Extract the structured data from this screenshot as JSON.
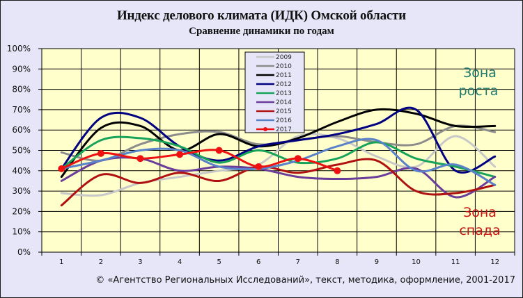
{
  "header": {
    "title": "Индекс делового климата (ИДК) Омской области",
    "subtitle": "Сравнение динамики  по годам"
  },
  "footer": {
    "copyright": "© «Агентство Региональных  Исследований»,  текст, методика, оформление,  2001-2017"
  },
  "annotations": {
    "zone_up_line1": "Зона",
    "zone_up_line2": "роста",
    "zone_down_line1": "Зона",
    "zone_down_line2": "спада",
    "zone_up_color": "#1f7a6e",
    "zone_down_color": "#cc1111"
  },
  "colors": {
    "frame_bg": "#e6e6f8",
    "plot_bg": "#ffffcc",
    "grid": "#000000",
    "legend_bg": "#e6e6f8"
  },
  "chart_data": {
    "type": "line",
    "title": "Индекс делового климата (ИДК) Омской области",
    "subtitle": "Сравнение динамики  по годам",
    "xlabel": "",
    "ylabel": "",
    "categories": [
      "1",
      "2",
      "3",
      "4",
      "5",
      "6",
      "7",
      "8",
      "9",
      "10",
      "11",
      "12"
    ],
    "yticks": [
      "0%",
      "10%",
      "20%",
      "30%",
      "40%",
      "50%",
      "60%",
      "70%",
      "80%",
      "90%",
      "100%"
    ],
    "ylim": [
      0,
      100
    ],
    "grid": true,
    "smooth": true,
    "legend_position": "inside-top-center",
    "series": [
      {
        "name": "2009",
        "color": "#c8c8c8",
        "values": [
          29,
          28,
          34,
          37,
          40,
          43,
          57,
          56,
          47,
          42,
          57,
          42
        ]
      },
      {
        "name": "2010",
        "color": "#8c8c8c",
        "values": [
          49,
          45,
          53,
          58,
          59,
          53,
          55,
          57,
          54,
          53,
          62,
          59
        ]
      },
      {
        "name": "2011",
        "color": "#000000",
        "values": [
          37,
          61,
          62,
          50,
          58,
          52,
          56,
          64,
          70,
          68,
          62,
          62
        ]
      },
      {
        "name": "2012",
        "color": "#000080",
        "values": [
          41,
          66,
          66,
          52,
          45,
          52,
          55,
          58,
          63,
          70,
          40,
          47
        ]
      },
      {
        "name": "2013",
        "color": "#17a35a",
        "values": [
          41,
          55,
          56,
          52,
          44,
          50,
          44,
          46,
          54,
          46,
          42,
          37
        ]
      },
      {
        "name": "2014",
        "color": "#6a3d9a",
        "values": [
          35,
          45,
          46,
          40,
          42,
          41,
          37,
          36,
          37,
          41,
          27,
          37
        ]
      },
      {
        "name": "2015",
        "color": "#b01010",
        "values": [
          23,
          38,
          34,
          39,
          35,
          42,
          39,
          43,
          45,
          30,
          29,
          33
        ]
      },
      {
        "name": "2016",
        "color": "#5a82c8",
        "values": [
          41,
          45,
          50,
          50,
          42,
          41,
          45,
          52,
          55,
          40,
          43,
          33
        ]
      },
      {
        "name": "2017",
        "color": "#ee1111",
        "values": [
          41,
          48.5,
          46,
          48,
          50,
          42,
          46,
          40
        ],
        "markers": true
      }
    ]
  }
}
